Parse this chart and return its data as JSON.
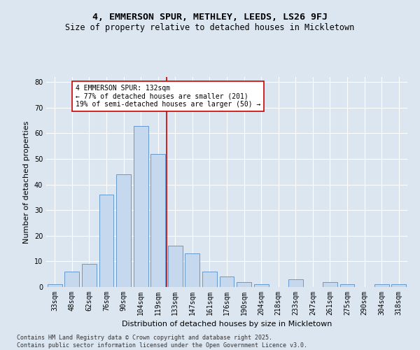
{
  "title": "4, EMMERSON SPUR, METHLEY, LEEDS, LS26 9FJ",
  "subtitle": "Size of property relative to detached houses in Mickletown",
  "xlabel": "Distribution of detached houses by size in Mickletown",
  "ylabel": "Number of detached properties",
  "bar_labels": [
    "33sqm",
    "48sqm",
    "62sqm",
    "76sqm",
    "90sqm",
    "104sqm",
    "119sqm",
    "133sqm",
    "147sqm",
    "161sqm",
    "176sqm",
    "190sqm",
    "204sqm",
    "218sqm",
    "233sqm",
    "247sqm",
    "261sqm",
    "275sqm",
    "290sqm",
    "304sqm",
    "318sqm"
  ],
  "bar_values": [
    1,
    6,
    9,
    36,
    44,
    63,
    52,
    16,
    13,
    6,
    4,
    2,
    1,
    0,
    3,
    0,
    2,
    1,
    0,
    1,
    1
  ],
  "bar_color": "#c5d8ee",
  "bar_edge_color": "#6699cc",
  "vline_color": "#cc0000",
  "annotation_text": "4 EMMERSON SPUR: 132sqm\n← 77% of detached houses are smaller (201)\n19% of semi-detached houses are larger (50) →",
  "annotation_box_color": "#ffffff",
  "annotation_box_edge_color": "#cc0000",
  "ylim": [
    0,
    82
  ],
  "yticks": [
    0,
    10,
    20,
    30,
    40,
    50,
    60,
    70,
    80
  ],
  "background_color": "#dce6f1",
  "footer_text": "Contains HM Land Registry data © Crown copyright and database right 2025.\nContains public sector information licensed under the Open Government Licence v3.0.",
  "title_fontsize": 9.5,
  "subtitle_fontsize": 8.5,
  "axis_label_fontsize": 8,
  "tick_fontsize": 7,
  "annotation_fontsize": 7,
  "footer_fontsize": 6
}
